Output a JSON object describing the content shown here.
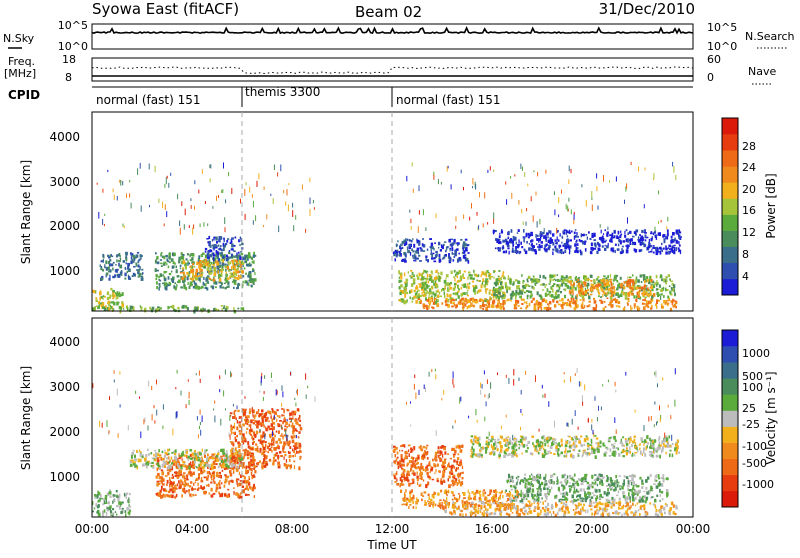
{
  "header": {
    "station": "Syowa East (fitACF)",
    "beam": "Beam 02",
    "date": "31/Dec/2010"
  },
  "top_panels": {
    "nsky_label": "N.Sky",
    "nsearch_label": "N.Search",
    "noise_ticks_left": [
      "10^5",
      "10^0"
    ],
    "noise_ticks_right": [
      "10^5",
      "10^0"
    ],
    "freq_label": "Freq.",
    "freq_unit": "[MHz]",
    "freq_ticks": [
      "18",
      "8"
    ],
    "nave_label": "Nave",
    "nave_ticks": [
      "60",
      "0"
    ],
    "cpid_label": "CPID"
  },
  "cpid_segments": [
    {
      "label": "normal (fast) 151",
      "start_h": 0,
      "end_h": 6
    },
    {
      "label": "themis 3300",
      "start_h": 6,
      "end_h": 12
    },
    {
      "label": "normal (fast) 151",
      "start_h": 12,
      "end_h": 24
    }
  ],
  "colors": {
    "power_scale": [
      "#1c1cd6",
      "#2e4fb0",
      "#3a6e8a",
      "#4a8c5c",
      "#5aaa3c",
      "#a6c43a",
      "#f2b01c",
      "#f08a1c",
      "#ee6a16",
      "#e63c10",
      "#dc1a0a"
    ],
    "velocity_scale": [
      "#1c1cd6",
      "#2e4fb0",
      "#3a6e8a",
      "#4a8c5c",
      "#5aaa3c",
      "#bcbcbc",
      "#f2b01c",
      "#f08a1c",
      "#ee6a16",
      "#e63c10",
      "#dc1a0a"
    ],
    "ground_scatter": "#bcbcbc"
  },
  "chart_data": [
    {
      "type": "heatmap",
      "name": "power",
      "ylabel": "Slant Range [km]",
      "colorbar_label": "Power [dB]",
      "colorbar_ticks": [
        "28",
        "24",
        "20",
        "16",
        "12",
        "8",
        "4"
      ],
      "ylim": [
        180,
        4600
      ],
      "yticks": [
        "1000",
        "2000",
        "3000",
        "4000"
      ],
      "xlim": [
        0,
        24
      ],
      "regions": [
        {
          "t0": 0.0,
          "t1": 1.2,
          "r0": 250,
          "r1": 700,
          "level": 5
        },
        {
          "t0": 0.3,
          "t1": 2.0,
          "r0": 900,
          "r1": 1500,
          "level": 2
        },
        {
          "t0": 2.5,
          "t1": 6.5,
          "r0": 700,
          "r1": 1500,
          "level": 3
        },
        {
          "t0": 3.5,
          "t1": 6.0,
          "r0": 900,
          "r1": 1350,
          "level": 6
        },
        {
          "t0": 4.5,
          "t1": 6.0,
          "r0": 1350,
          "r1": 1850,
          "level": 1
        },
        {
          "t0": 0.0,
          "t1": 6.0,
          "r0": 200,
          "r1": 320,
          "level": 4
        },
        {
          "t0": 12.0,
          "t1": 15.0,
          "r0": 1300,
          "r1": 1800,
          "level": 1
        },
        {
          "t0": 12.2,
          "t1": 16.5,
          "r0": 400,
          "r1": 1100,
          "level": 5
        },
        {
          "t0": 13.0,
          "t1": 23.3,
          "r0": 250,
          "r1": 480,
          "level": 7
        },
        {
          "t0": 16.0,
          "t1": 23.3,
          "r0": 500,
          "r1": 1000,
          "level": 4
        },
        {
          "t0": 19.0,
          "t1": 22.5,
          "r0": 550,
          "r1": 900,
          "level": 7
        },
        {
          "t0": 16.0,
          "t1": 23.5,
          "r0": 1500,
          "r1": 2000,
          "level": 0
        }
      ]
    },
    {
      "type": "heatmap",
      "name": "velocity",
      "ylabel": "Slant Range [km]",
      "colorbar_label": "Velocity [m s⁻¹]",
      "colorbar_ticks": [
        "1000",
        "500",
        "100",
        "25",
        "-25",
        "-100",
        "-500",
        "-1000"
      ],
      "xlabel": "Time UT",
      "xticks": [
        "00:00",
        "04:00",
        "08:00",
        "12:00",
        "16:00",
        "20:00",
        "00:00"
      ],
      "ylim": [
        180,
        4600
      ],
      "yticks": [
        "1000",
        "2000",
        "3000",
        "4000"
      ],
      "xlim": [
        0,
        24
      ],
      "regions": [
        {
          "t0": 0.0,
          "t1": 1.5,
          "r0": 250,
          "r1": 800,
          "level": 4
        },
        {
          "t0": 2.5,
          "t1": 6.5,
          "r0": 650,
          "r1": 1600,
          "level": 8
        },
        {
          "t0": 5.5,
          "t1": 8.3,
          "r0": 1300,
          "r1": 2600,
          "level": 8
        },
        {
          "t0": 1.5,
          "t1": 6.0,
          "r0": 1300,
          "r1": 1700,
          "level": 5
        },
        {
          "t0": 12.0,
          "t1": 14.8,
          "r0": 900,
          "r1": 1800,
          "level": 8
        },
        {
          "t0": 12.3,
          "t1": 17.0,
          "r0": 400,
          "r1": 800,
          "level": 7
        },
        {
          "t0": 14.0,
          "t1": 23.3,
          "r0": 250,
          "r1": 550,
          "level": 6
        },
        {
          "t0": 16.5,
          "t1": 23.0,
          "r0": 550,
          "r1": 1150,
          "level": 4
        },
        {
          "t0": 15.0,
          "t1": 23.5,
          "r0": 1550,
          "r1": 2000,
          "level": 5
        }
      ]
    }
  ]
}
